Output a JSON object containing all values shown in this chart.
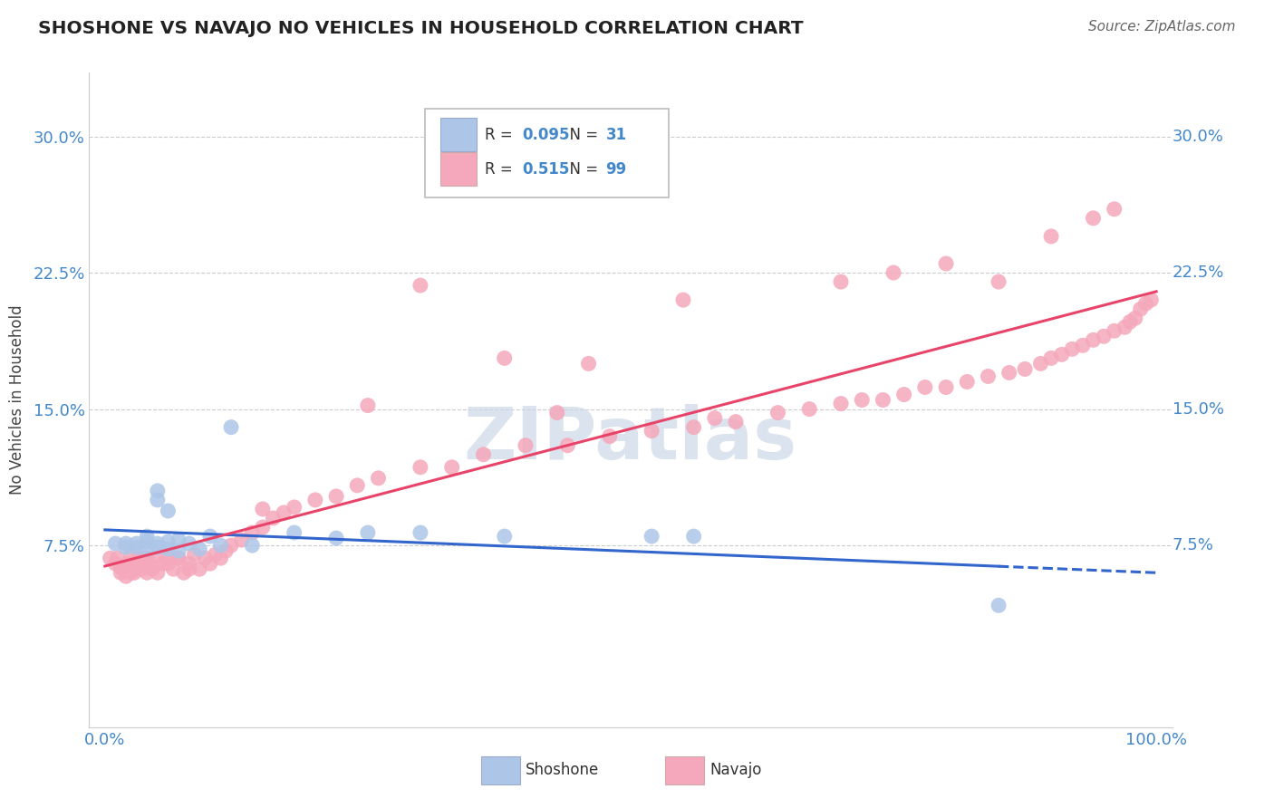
{
  "title": "SHOSHONE VS NAVAJO NO VEHICLES IN HOUSEHOLD CORRELATION CHART",
  "source": "Source: ZipAtlas.com",
  "ylabel": "No Vehicles in Household",
  "legend_R_shoshone": "0.095",
  "legend_N_shoshone": "31",
  "legend_R_navajo": "0.515",
  "legend_N_navajo": "99",
  "shoshone_color": "#adc6e8",
  "navajo_color": "#f5a8bb",
  "shoshone_line_color": "#3366cc",
  "navajo_line_color": "#e8446a",
  "tick_color": "#4488cc",
  "watermark_color": "#cdd8e8",
  "shoshone_x": [
    0.01,
    0.02,
    0.02,
    0.03,
    0.03,
    0.04,
    0.04,
    0.04,
    0.05,
    0.05,
    0.05,
    0.05,
    0.06,
    0.06,
    0.06,
    0.07,
    0.07,
    0.08,
    0.09,
    0.1,
    0.11,
    0.12,
    0.14,
    0.18,
    0.22,
    0.25,
    0.3,
    0.38,
    0.52,
    0.56,
    0.85
  ],
  "shoshone_y": [
    0.076,
    0.074,
    0.076,
    0.074,
    0.076,
    0.073,
    0.077,
    0.08,
    0.074,
    0.076,
    0.1,
    0.105,
    0.073,
    0.077,
    0.094,
    0.072,
    0.078,
    0.076,
    0.073,
    0.08,
    0.075,
    0.14,
    0.075,
    0.082,
    0.079,
    0.082,
    0.082,
    0.08,
    0.08,
    0.08,
    0.042
  ],
  "navajo_x": [
    0.005,
    0.01,
    0.012,
    0.015,
    0.018,
    0.02,
    0.022,
    0.025,
    0.028,
    0.03,
    0.032,
    0.035,
    0.038,
    0.04,
    0.042,
    0.045,
    0.048,
    0.05,
    0.055,
    0.06,
    0.065,
    0.07,
    0.075,
    0.08,
    0.085,
    0.09,
    0.095,
    0.1,
    0.105,
    0.11,
    0.115,
    0.12,
    0.13,
    0.14,
    0.15,
    0.16,
    0.17,
    0.18,
    0.2,
    0.22,
    0.24,
    0.26,
    0.3,
    0.33,
    0.36,
    0.4,
    0.44,
    0.48,
    0.52,
    0.56,
    0.6,
    0.64,
    0.67,
    0.7,
    0.72,
    0.74,
    0.76,
    0.78,
    0.8,
    0.82,
    0.84,
    0.86,
    0.875,
    0.89,
    0.9,
    0.91,
    0.92,
    0.93,
    0.94,
    0.95,
    0.96,
    0.97,
    0.975,
    0.98,
    0.985,
    0.99,
    0.995,
    0.3,
    0.55,
    0.7,
    0.75,
    0.8,
    0.85,
    0.9,
    0.94,
    0.96,
    0.38,
    0.46,
    0.25,
    0.15,
    0.08,
    0.06,
    0.04,
    0.025,
    0.015,
    0.035,
    0.07,
    0.43,
    0.58
  ],
  "navajo_y": [
    0.068,
    0.065,
    0.068,
    0.06,
    0.062,
    0.058,
    0.065,
    0.07,
    0.06,
    0.065,
    0.068,
    0.062,
    0.068,
    0.06,
    0.065,
    0.062,
    0.068,
    0.06,
    0.065,
    0.068,
    0.062,
    0.068,
    0.06,
    0.065,
    0.07,
    0.062,
    0.068,
    0.065,
    0.07,
    0.068,
    0.072,
    0.075,
    0.078,
    0.082,
    0.085,
    0.09,
    0.093,
    0.096,
    0.1,
    0.102,
    0.108,
    0.112,
    0.118,
    0.118,
    0.125,
    0.13,
    0.13,
    0.135,
    0.138,
    0.14,
    0.143,
    0.148,
    0.15,
    0.153,
    0.155,
    0.155,
    0.158,
    0.162,
    0.162,
    0.165,
    0.168,
    0.17,
    0.172,
    0.175,
    0.178,
    0.18,
    0.183,
    0.185,
    0.188,
    0.19,
    0.193,
    0.195,
    0.198,
    0.2,
    0.205,
    0.208,
    0.21,
    0.218,
    0.21,
    0.22,
    0.225,
    0.23,
    0.22,
    0.245,
    0.255,
    0.26,
    0.178,
    0.175,
    0.152,
    0.095,
    0.062,
    0.065,
    0.068,
    0.06,
    0.063,
    0.065,
    0.068,
    0.148,
    0.145
  ],
  "xlim": [
    0.0,
    1.0
  ],
  "ylim": [
    -0.025,
    0.335
  ],
  "ytick_vals": [
    0.075,
    0.15,
    0.225,
    0.3
  ],
  "ytick_labels": [
    "7.5%",
    "15.0%",
    "22.5%",
    "30.0%"
  ]
}
